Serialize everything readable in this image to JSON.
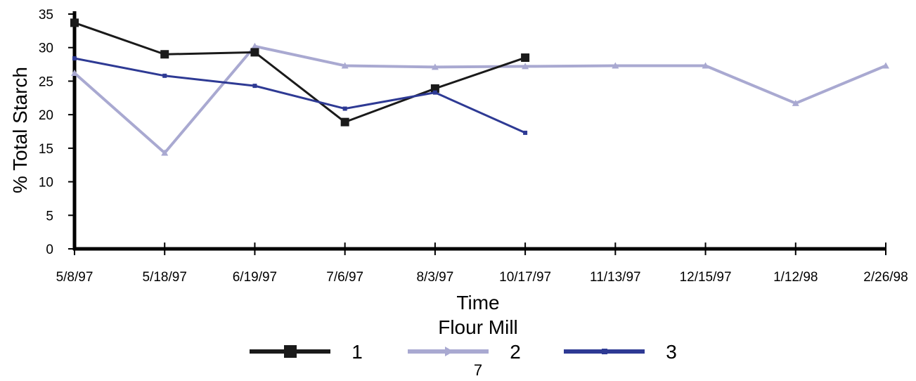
{
  "chart_data": {
    "type": "line",
    "title": "",
    "xlabel": "Time",
    "ylabel": "% Total Starch",
    "categories": [
      "5/8/97",
      "5/18/97",
      "6/19/97",
      "7/6/97",
      "8/3/97",
      "10/17/97",
      "11/13/97",
      "12/15/97",
      "1/12/98",
      "2/26/98"
    ],
    "ylim": [
      0,
      35
    ],
    "yticks": [
      0,
      5,
      10,
      15,
      20,
      25,
      30,
      35
    ],
    "grid": false,
    "legend": {
      "title": "Flour Mill",
      "position": "bottom"
    },
    "series": [
      {
        "name": "1",
        "color": "#1a1a1a",
        "marker": "square",
        "values": [
          33.7,
          29.0,
          29.3,
          18.9,
          23.9,
          28.5,
          null,
          null,
          null,
          null
        ]
      },
      {
        "name": "2",
        "color": "#a9a9d1",
        "marker": "triangle",
        "values": [
          26.2,
          14.3,
          30.2,
          27.3,
          27.1,
          27.2,
          27.3,
          27.3,
          21.7,
          27.3
        ]
      },
      {
        "name": "3",
        "color": "#2e3a94",
        "marker": "small-square",
        "values": [
          28.4,
          25.8,
          24.3,
          20.9,
          23.3,
          17.3,
          null,
          null,
          null,
          null
        ]
      }
    ]
  },
  "page": {
    "number": "7"
  }
}
